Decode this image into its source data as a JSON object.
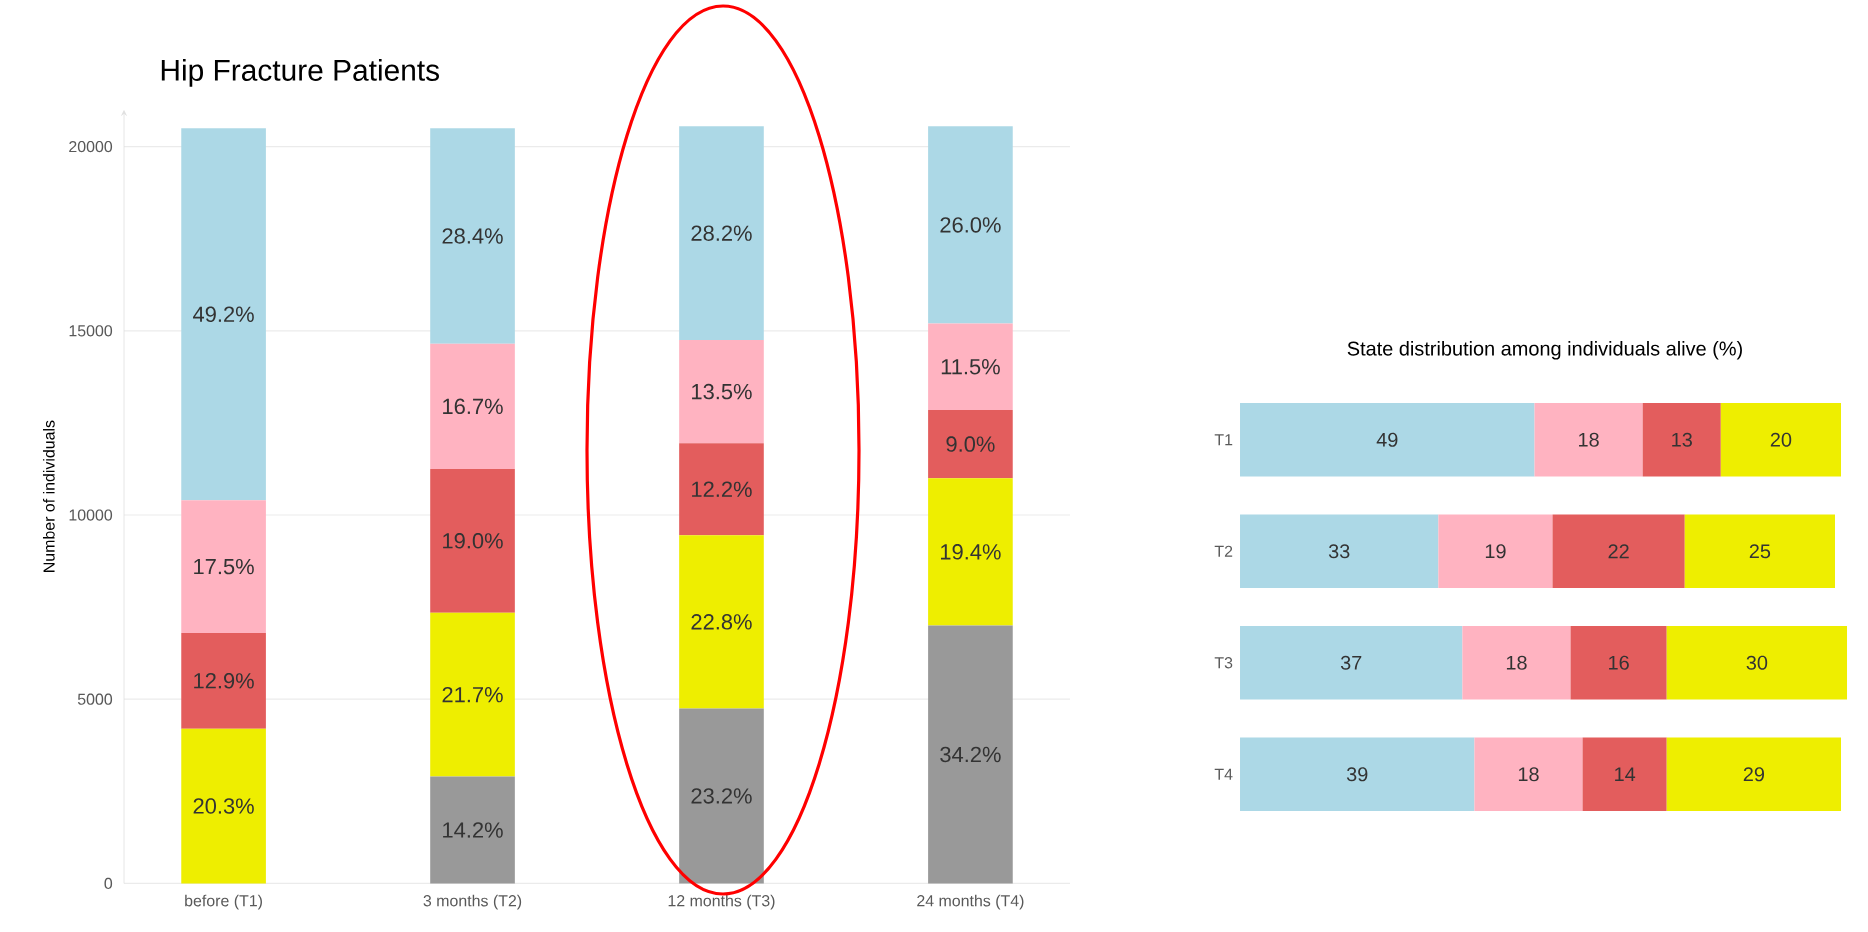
{
  "chart_data": [
    {
      "type": "bar",
      "stacked": true,
      "title": "Hip Fracture Patients",
      "ylabel": "Number of individuals",
      "categories": [
        "before (T1)",
        "3 months (T2)",
        "12 months (T3)",
        "24 months (T4)"
      ],
      "series": [
        {
          "color": "#999999",
          "values": [
            0,
            2900,
            4750,
            7000
          ]
        },
        {
          "color": "#eeee00",
          "values": [
            4200,
            4450,
            4700,
            4000
          ]
        },
        {
          "color": "#e35d5d",
          "values": [
            2600,
            3900,
            2500,
            1850
          ]
        },
        {
          "color": "#ffb3c1",
          "values": [
            3600,
            3400,
            2800,
            2350
          ]
        },
        {
          "color": "#acd8e6",
          "values": [
            10100,
            5850,
            5800,
            5350
          ]
        }
      ],
      "annotations": [
        "14.2%",
        "23.2%",
        "34.2%",
        "20.3%",
        "21.7%",
        "22.8%",
        "19.4%",
        "12.9%",
        "19.0%",
        "12.2%",
        "9.0%",
        "17.5%",
        "16.7%",
        "13.5%",
        "11.5%",
        "49.2%",
        "28.4%",
        "28.2%",
        "26.0%"
      ],
      "ylim": [
        0,
        21000
      ],
      "yticks": [
        0,
        5000,
        10000,
        15000,
        20000
      ],
      "grid": "y"
    },
    {
      "type": "bar",
      "orientation": "horizontal",
      "stacked": true,
      "title": "State distribution among individuals alive (%)",
      "categories": [
        "T1",
        "T2",
        "T3",
        "T4"
      ],
      "series": [
        {
          "color": "#acd8e6",
          "values": [
            49,
            33,
            37,
            39
          ]
        },
        {
          "color": "#ffb3c1",
          "values": [
            18,
            19,
            18,
            18
          ]
        },
        {
          "color": "#e35d5d",
          "values": [
            13,
            22,
            16,
            14
          ]
        },
        {
          "color": "#eeee00",
          "values": [
            20,
            25,
            30,
            29
          ]
        }
      ],
      "xlim": [
        0,
        101.5
      ],
      "data_labels": true,
      "tick_labels": "y"
    }
  ]
}
